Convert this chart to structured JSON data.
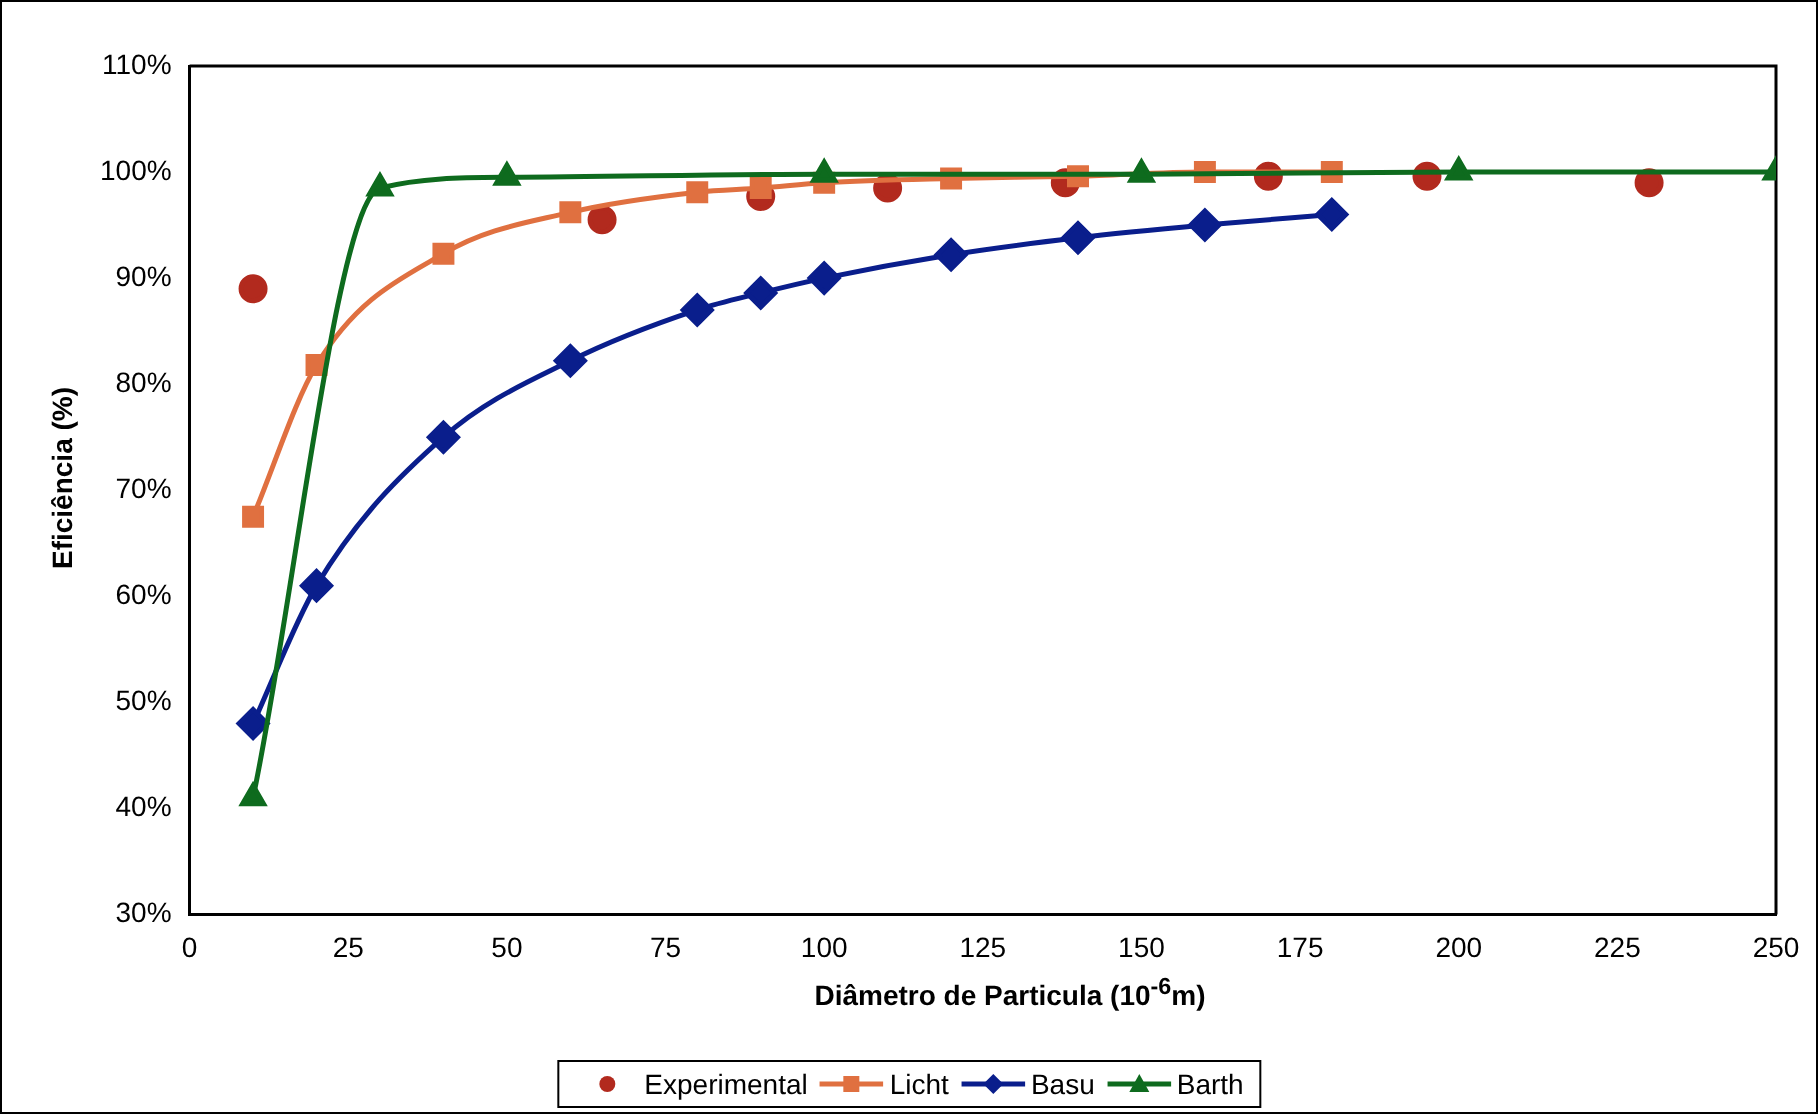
{
  "chart_data": {
    "type": "line",
    "xlabel": "Diâmetro de Particula (10$^{-6}$m)",
    "ylabel": "Eficiência (%)",
    "xlim": [
      0,
      250
    ],
    "xticks": [
      0,
      25,
      50,
      75,
      100,
      125,
      150,
      175,
      200,
      225,
      250
    ],
    "ylim": [
      30,
      110
    ],
    "yticks": [
      {
        "value": 30,
        "label": "30%"
      },
      {
        "value": 40,
        "label": "40%"
      },
      {
        "value": 50,
        "label": "50%"
      },
      {
        "value": 60,
        "label": "60%"
      },
      {
        "value": 70,
        "label": "70%"
      },
      {
        "value": 80,
        "label": "80%"
      },
      {
        "value": 90,
        "label": "90%"
      },
      {
        "value": 100,
        "label": "100%"
      },
      {
        "value": 110,
        "label": "110%"
      }
    ],
    "grid": false,
    "legend": "bottom",
    "series": [
      {
        "name": "Experimental",
        "type": "scatter",
        "marker": "circle",
        "color": "#b22a1e",
        "x": [
          10,
          65,
          90,
          110,
          138,
          170,
          195,
          230
        ],
        "values": [
          89,
          95.5,
          97.7,
          98.5,
          99,
          99.6,
          99.6,
          99
        ]
      },
      {
        "name": "Licht",
        "type": "line",
        "marker": "square",
        "color": "#e07040",
        "x": [
          10,
          20,
          40,
          60,
          80,
          90,
          100,
          120,
          140,
          160,
          180
        ],
        "values": [
          67.5,
          81.8,
          92.3,
          96.2,
          98.1,
          98.5,
          99,
          99.4,
          99.6,
          100,
          100
        ]
      },
      {
        "name": "Basu",
        "type": "line",
        "marker": "diamond",
        "color": "#0a1e8c",
        "x": [
          10,
          20,
          40,
          60,
          80,
          90,
          100,
          120,
          140,
          160,
          180
        ],
        "values": [
          48,
          61,
          75,
          82.2,
          87,
          88.6,
          90,
          92.2,
          93.8,
          95,
          96
        ]
      },
      {
        "name": "Barth",
        "type": "line",
        "marker": "triangle",
        "color": "#0e6b1e",
        "x": [
          10,
          30,
          50,
          100,
          150,
          200,
          250
        ],
        "values": [
          41,
          98.5,
          99.5,
          99.8,
          99.8,
          100,
          100
        ]
      }
    ]
  }
}
